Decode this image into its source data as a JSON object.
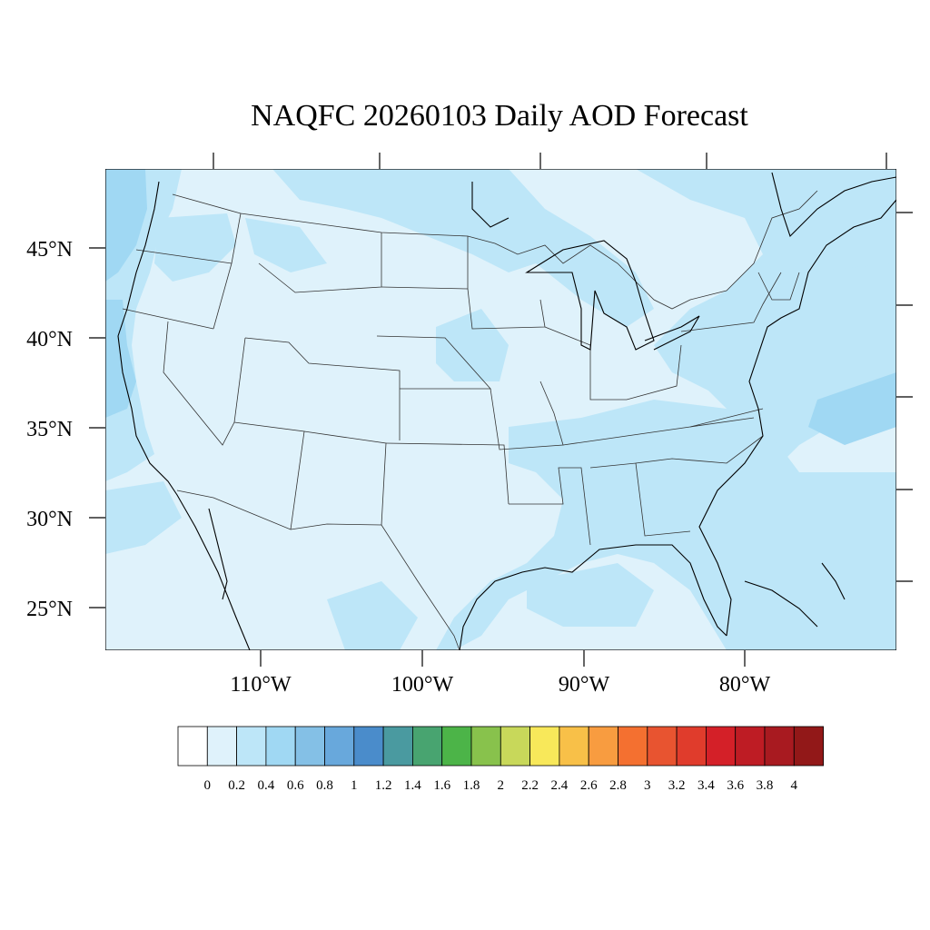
{
  "map": {
    "title": "NAQFC 20260103 Daily AOD Forecast",
    "lat_labels": [
      "45°N",
      "40°N",
      "35°N",
      "30°N",
      "25°N"
    ],
    "lat_values": [
      45,
      40,
      35,
      30,
      25
    ],
    "lon_labels": [
      "110°W",
      "100°W",
      "90°W",
      "80°W"
    ],
    "lon_values": [
      -110,
      -100,
      -90,
      -80
    ],
    "background_color": "#dff2fb",
    "border_color": "#000000"
  },
  "colorbar": {
    "colors": [
      "#ffffff",
      "#dff2fb",
      "#bde6f8",
      "#a0d8f3",
      "#84c0e6",
      "#68a8dc",
      "#4a8ccb",
      "#4a9aa0",
      "#48a470",
      "#4cb448",
      "#88c24c",
      "#c8d85a",
      "#f8e85a",
      "#f8c048",
      "#f89c40",
      "#f47030",
      "#e85430",
      "#e03c2c",
      "#d42028",
      "#be1c24",
      "#a81a20",
      "#921818"
    ],
    "labels": [
      "0",
      "0.2",
      "0.4",
      "0.6",
      "0.8",
      "1",
      "1.2",
      "1.4",
      "1.6",
      "1.8",
      "2",
      "2.2",
      "2.4",
      "2.6",
      "2.8",
      "3",
      "3.2",
      "3.4",
      "3.6",
      "3.8",
      "4"
    ]
  }
}
